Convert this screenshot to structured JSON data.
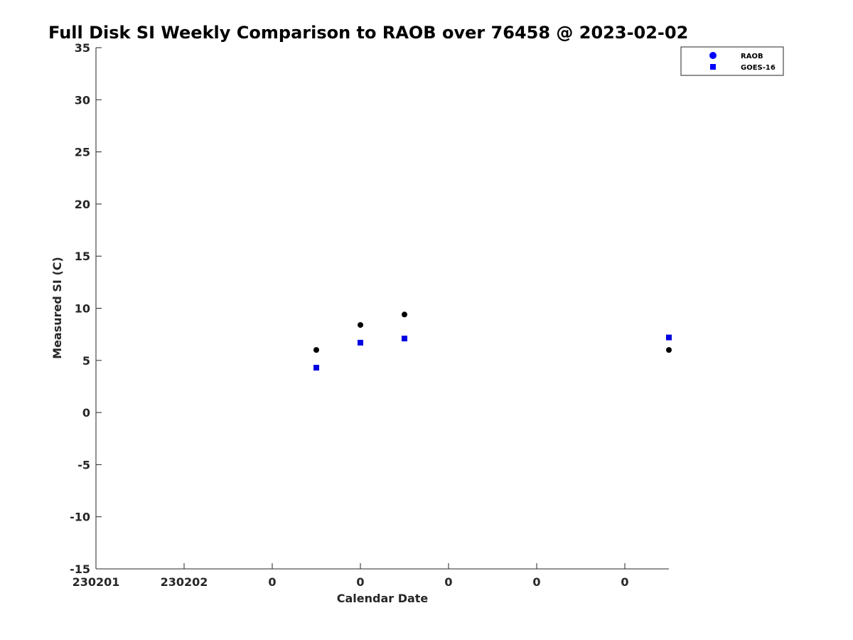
{
  "chart_data": {
    "type": "scatter",
    "title": "Full Disk SI Weekly Comparison to RAOB over 76458 @ 2023-02-02",
    "xlabel": "Calendar Date",
    "ylabel": "Measured SI (C)",
    "x_tick_values": [
      0,
      1,
      2,
      3,
      4,
      5,
      6
    ],
    "x_tick_labels": [
      "230201",
      "230202",
      "0",
      "0",
      "0",
      "0",
      "0"
    ],
    "xlim": [
      0,
      6.5
    ],
    "ylim": [
      -15,
      35
    ],
    "y_ticks": [
      -15,
      -10,
      -5,
      0,
      5,
      10,
      15,
      20,
      25,
      30,
      35
    ],
    "grid": false,
    "legend_position": "top-right",
    "series": [
      {
        "name": "RAOB",
        "marker": "circle",
        "color": "#000000",
        "legend_color": "#0000ff",
        "points": [
          {
            "x": 2.5,
            "y": 6.0
          },
          {
            "x": 3.0,
            "y": 8.4
          },
          {
            "x": 3.5,
            "y": 9.4
          },
          {
            "x": 6.5,
            "y": 6.0
          }
        ]
      },
      {
        "name": "GOES-16",
        "marker": "square",
        "color": "#0000e0",
        "legend_color": "#0000ff",
        "points": [
          {
            "x": 2.5,
            "y": 4.3
          },
          {
            "x": 3.0,
            "y": 6.7
          },
          {
            "x": 3.5,
            "y": 7.1
          },
          {
            "x": 6.5,
            "y": 7.2
          }
        ]
      }
    ]
  }
}
